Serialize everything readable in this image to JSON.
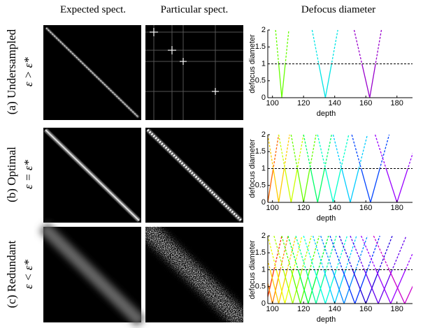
{
  "column_headers": [
    "Expected spect.",
    "Particular spect.",
    "Defocus diameter"
  ],
  "rows": [
    {
      "label": "(a) Undersampled",
      "condition": "ε > ε*",
      "chart": {
        "type": "line",
        "xlabel": "depth",
        "ylabel": "defocus diameter",
        "xlim": [
          97,
          190
        ],
        "ylim": [
          0,
          2
        ],
        "xticks": [
          100,
          120,
          140,
          160,
          180
        ],
        "yticks": [
          0,
          0.5,
          1,
          1.5,
          2
        ],
        "threshold": 1,
        "series": [
          {
            "color": "#66ff00",
            "x": [
              102,
              106,
              110.5
            ],
            "values": [
              2,
              0,
              2
            ]
          },
          {
            "color": "#00e5e5",
            "x": [
              125.5,
              134,
              142
            ],
            "values": [
              2,
              0,
              2
            ]
          },
          {
            "color": "#9900cc",
            "x": [
              152.5,
              162.5,
              170
            ],
            "values": [
              2,
              0,
              2
            ]
          }
        ]
      }
    },
    {
      "label": "(b) Optimal",
      "condition": "ε = ε*",
      "chart": {
        "type": "line",
        "xlabel": "depth",
        "ylabel": "defocus diameter",
        "xlim": [
          97,
          190
        ],
        "ylim": [
          0,
          2
        ],
        "xticks": [
          100,
          120,
          140,
          160,
          180
        ],
        "yticks": [
          0,
          0.5,
          1,
          1.5,
          2
        ],
        "threshold": 1,
        "series": [
          {
            "color": "#ff6600",
            "x": [
              90,
              97,
              104
            ],
            "values": [
              2,
              0,
              2
            ]
          },
          {
            "color": "#ffcc00",
            "x": [
              97,
              104,
              111
            ],
            "values": [
              2,
              0,
              2
            ]
          },
          {
            "color": "#ccff00",
            "x": [
              104,
              112,
              120
            ],
            "values": [
              2,
              0,
              2
            ]
          },
          {
            "color": "#66ff00",
            "x": [
              112,
              120,
              128
            ],
            "values": [
              2,
              0,
              2
            ]
          },
          {
            "color": "#00ff66",
            "x": [
              120,
              129,
              138
            ],
            "values": [
              2,
              0,
              2
            ]
          },
          {
            "color": "#00ffcc",
            "x": [
              129,
              139,
              149
            ],
            "values": [
              2,
              0,
              2
            ]
          },
          {
            "color": "#00ccff",
            "x": [
              139,
              150,
              161
            ],
            "values": [
              2,
              0,
              2
            ]
          },
          {
            "color": "#0044ff",
            "x": [
              151,
              163,
              175
            ],
            "values": [
              2,
              0,
              2
            ]
          },
          {
            "color": "#9900ff",
            "x": [
              166,
              180,
              194
            ],
            "values": [
              2,
              0,
              2
            ]
          }
        ]
      }
    },
    {
      "label": "(c) Redundant",
      "condition": "ε < ε*",
      "chart": {
        "type": "line",
        "xlabel": "depth",
        "ylabel": "defocus diameter",
        "xlim": [
          97,
          190
        ],
        "ylim": [
          0,
          2
        ],
        "xticks": [
          100,
          120,
          140,
          160,
          180
        ],
        "yticks": [
          0,
          0.5,
          1,
          1.5,
          2
        ],
        "threshold": 1,
        "series": [
          {
            "color": "#ff3300",
            "x": [
              86,
              96,
              106
            ],
            "values": [
              2,
              0,
              2
            ]
          },
          {
            "color": "#ff8800",
            "x": [
              90,
              100,
              110
            ],
            "values": [
              2,
              0,
              2
            ]
          },
          {
            "color": "#ffcc00",
            "x": [
              93,
              104,
              115
            ],
            "values": [
              2,
              0,
              2
            ]
          },
          {
            "color": "#eeff00",
            "x": [
              97,
              108,
              119
            ],
            "values": [
              2,
              0,
              2
            ]
          },
          {
            "color": "#aaff00",
            "x": [
              101,
              113,
              125
            ],
            "values": [
              2,
              0,
              2
            ]
          },
          {
            "color": "#55ff00",
            "x": [
              106,
              118,
              130
            ],
            "values": [
              2,
              0,
              2
            ]
          },
          {
            "color": "#00ff33",
            "x": [
              110,
              123,
              136
            ],
            "values": [
              2,
              0,
              2
            ]
          },
          {
            "color": "#00ff99",
            "x": [
              115,
              128,
              141
            ],
            "values": [
              2,
              0,
              2
            ]
          },
          {
            "color": "#00ffdd",
            "x": [
              120,
              134,
              148
            ],
            "values": [
              2,
              0,
              2
            ]
          },
          {
            "color": "#00ccff",
            "x": [
              126,
              140,
              154
            ],
            "values": [
              2,
              0,
              2
            ]
          },
          {
            "color": "#0088ff",
            "x": [
              131,
              146,
              161
            ],
            "values": [
              2,
              0,
              2
            ]
          },
          {
            "color": "#0033ff",
            "x": [
              137,
              153,
              169
            ],
            "values": [
              2,
              0,
              2
            ]
          },
          {
            "color": "#2200dd",
            "x": [
              143,
              160,
              177
            ],
            "values": [
              2,
              0,
              2
            ]
          },
          {
            "color": "#6600ee",
            "x": [
              150,
              168,
              186
            ],
            "values": [
              2,
              0,
              2
            ]
          },
          {
            "color": "#9900ff",
            "x": [
              157,
              176,
              195
            ],
            "values": [
              2,
              0,
              2
            ]
          },
          {
            "color": "#cc00cc",
            "x": [
              165,
              185,
              205
            ],
            "values": [
              2,
              0,
              2
            ]
          }
        ]
      }
    }
  ]
}
